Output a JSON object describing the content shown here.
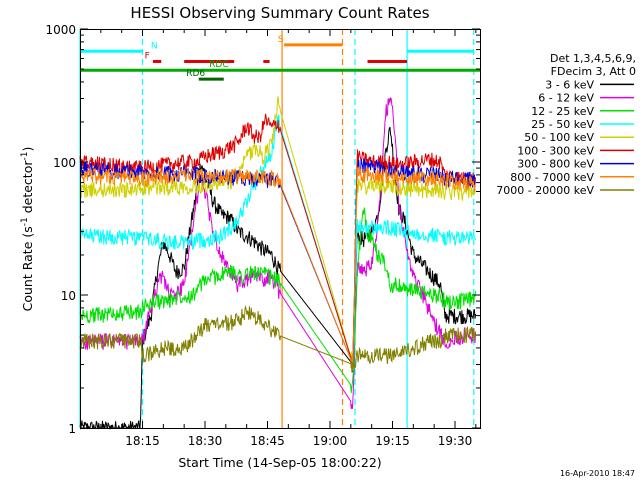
{
  "chart_data": {
    "type": "line",
    "title": "HESSI Observing Summary Count Rates",
    "xlabel": "Start Time (14-Sep-05 18:00:22)",
    "ylabel_prefix": "Count Rate (s",
    "ylabel_sup1": "-1",
    "ylabel_mid": " detector",
    "ylabel_sup2": "-1",
    "ylabel_suffix": ")",
    "yscale": "log",
    "ylim": [
      1,
      1000
    ],
    "xlim_minutes": [
      0,
      96
    ],
    "x_ticks": [
      {
        "minute": 15,
        "label": "18:15"
      },
      {
        "minute": 30,
        "label": "18:30"
      },
      {
        "minute": 45,
        "label": "18:45"
      },
      {
        "minute": 60,
        "label": "19:00"
      },
      {
        "minute": 75,
        "label": "19:15"
      },
      {
        "minute": 90,
        "label": "19:30"
      }
    ],
    "y_ticks": [
      {
        "value": 1,
        "label": "1"
      },
      {
        "value": 10,
        "label": "10"
      },
      {
        "value": 100,
        "label": "100"
      },
      {
        "value": 1000,
        "label": "1000"
      }
    ],
    "legend_title": [
      "Det 1,3,4,5,6,9,",
      "FDecim 3, Att 0"
    ],
    "legend_position": "right",
    "series": [
      {
        "name": "3 - 6 keV",
        "color": "#000000",
        "x": [
          0,
          14.5,
          15,
          17,
          18.5,
          20,
          21.5,
          23,
          25,
          26.5,
          28,
          29,
          30,
          32,
          34,
          36,
          38,
          40,
          42,
          44,
          46,
          47.5,
          65.5,
          66.5,
          68,
          70,
          71.5,
          72.5,
          73.5,
          74.5,
          75.5,
          76.5,
          78,
          80,
          86.5,
          87.5,
          92,
          95
        ],
        "y": [
          1,
          1,
          4.5,
          7,
          15,
          25,
          20,
          15,
          16,
          32,
          60,
          100,
          80,
          50,
          40,
          38,
          30,
          28,
          25,
          22,
          20,
          16,
          3,
          28,
          26,
          30,
          40,
          70,
          130,
          180,
          90,
          45,
          35,
          20,
          12,
          7,
          7,
          7
        ]
      },
      {
        "name": "6 - 12 keV",
        "color": "#e000e0",
        "x": [
          0,
          14.5,
          15,
          17,
          18.5,
          20,
          21.5,
          23,
          25,
          26.5,
          28,
          29,
          30,
          32,
          34,
          36,
          38,
          40,
          42,
          44,
          46,
          47.5,
          65.5,
          66.5,
          68,
          70,
          71.5,
          72.5,
          73.5,
          74.5,
          75.5,
          76.5,
          78,
          80,
          86.5,
          87.5,
          92,
          95
        ],
        "y": [
          4.5,
          4.5,
          4.5,
          8,
          12,
          14,
          10,
          10,
          12,
          25,
          50,
          80,
          60,
          30,
          20,
          14,
          12,
          13,
          14,
          13,
          14,
          11,
          1.5,
          16,
          15,
          18,
          35,
          90,
          240,
          300,
          180,
          50,
          25,
          14,
          5,
          4.5,
          5,
          5
        ]
      },
      {
        "name": "12 - 25 keV",
        "color": "#00e000",
        "x": [
          0,
          14.5,
          15,
          18,
          21,
          24,
          27,
          30,
          33,
          36,
          39,
          42,
          45,
          47.5,
          65.5,
          66.5,
          68,
          69,
          70,
          71.5,
          73,
          74.5,
          76,
          78,
          80,
          84,
          86.5,
          87.5,
          92,
          95
        ],
        "y": [
          7,
          7.5,
          8,
          9,
          9,
          10,
          10,
          13,
          14,
          15,
          14,
          15,
          14,
          13,
          2,
          15,
          45,
          30,
          25,
          20,
          18,
          12,
          12,
          11,
          11,
          10,
          10,
          9,
          9,
          9.5
        ]
      },
      {
        "name": "25 - 50 keV",
        "color": "#00ffff",
        "x": [
          0,
          14.5,
          15,
          18,
          22,
          26,
          28,
          30,
          34,
          36,
          38,
          40,
          42,
          44,
          46,
          47.5,
          65.5,
          66.5,
          68,
          70,
          74,
          78,
          82,
          86.5,
          87.5,
          92,
          95
        ],
        "y": [
          28,
          27,
          27,
          26,
          25,
          25,
          26,
          26,
          28,
          32,
          38,
          50,
          70,
          90,
          120,
          210,
          3,
          33,
          32,
          32,
          32,
          30,
          29,
          28,
          27,
          27,
          27
        ]
      },
      {
        "name": "50 - 100 keV",
        "color": "#d0d000",
        "x": [
          0,
          14.5,
          15,
          20,
          25,
          28,
          30,
          34,
          36,
          38,
          40,
          42,
          44,
          46,
          47.5,
          65.5,
          66.5,
          68,
          70,
          74,
          78,
          82,
          86.5,
          87.5,
          92,
          95
        ],
        "y": [
          62,
          62,
          64,
          65,
          66,
          66,
          68,
          70,
          72,
          80,
          110,
          130,
          110,
          140,
          280,
          3,
          68,
          66,
          66,
          68,
          64,
          62,
          62,
          60,
          60,
          60
        ]
      },
      {
        "name": "100 - 300 keV",
        "color": "#e00000",
        "x": [
          0,
          14.5,
          15,
          20,
          25,
          28,
          30,
          34,
          36,
          38,
          40,
          41.5,
          43,
          44.5,
          46,
          47.5,
          65.5,
          66.5,
          68,
          70,
          72,
          74,
          76,
          80,
          84,
          86.5,
          87.5,
          92,
          95
        ],
        "y": [
          100,
          90,
          90,
          95,
          100,
          100,
          110,
          120,
          130,
          140,
          190,
          160,
          150,
          210,
          180,
          200,
          3,
          110,
          105,
          100,
          100,
          100,
          95,
          100,
          105,
          100,
          80,
          75,
          75
        ]
      },
      {
        "name": "300 - 800 keV",
        "color": "#0000e0",
        "x": [
          0,
          14.5,
          15,
          20,
          25,
          30,
          35,
          40,
          45,
          47.5,
          65.5,
          66.5,
          70,
          75,
          80,
          86.5,
          87.5,
          92,
          95
        ],
        "y": [
          88,
          85,
          83,
          82,
          82,
          80,
          78,
          76,
          74,
          74,
          3,
          95,
          92,
          88,
          82,
          80,
          75,
          74,
          74
        ]
      },
      {
        "name": "800 - 7000 keV",
        "color": "#ff8000",
        "x": [
          0,
          14.5,
          15,
          20,
          25,
          30,
          35,
          40,
          45,
          47.5,
          65.5,
          66.5,
          70,
          75,
          80,
          86.5,
          87.5,
          92,
          95
        ],
        "y": [
          80,
          76,
          76,
          78,
          78,
          78,
          78,
          78,
          76,
          76,
          3,
          82,
          80,
          78,
          76,
          75,
          72,
          70,
          68
        ]
      },
      {
        "name": "7000 - 20000 keV",
        "color": "#808000",
        "x": [
          0,
          14.5,
          15,
          20,
          25,
          28,
          30,
          34,
          38,
          40,
          42,
          46,
          47.5,
          65.5,
          66.5,
          70,
          75,
          80,
          84,
          86.5,
          87.5,
          92,
          95
        ],
        "y": [
          4.5,
          4.5,
          3.5,
          4,
          4,
          5,
          6,
          6,
          6.5,
          7.5,
          7,
          5.5,
          5,
          3,
          3.5,
          3.5,
          3.5,
          4,
          4.5,
          4.5,
          5,
          5,
          5
        ]
      }
    ],
    "vertical_lines": [
      {
        "minute": 0,
        "color": "#00ffff",
        "style": "solid"
      },
      {
        "minute": 15,
        "color": "#00ffff",
        "style": "dashed"
      },
      {
        "minute": 48.5,
        "color": "#ff8000",
        "style": "solid"
      },
      {
        "minute": 63,
        "color": "#ff8000",
        "style": "dashed"
      },
      {
        "minute": 66,
        "color": "#00ffff",
        "style": "dashed"
      },
      {
        "minute": 78.5,
        "color": "#00ffff",
        "style": "solid"
      },
      {
        "minute": 94.5,
        "color": "#00ffff",
        "style": "dashed"
      }
    ],
    "flag_bars": [
      {
        "label": "N",
        "color": "#00ffff",
        "level": 680,
        "segments": [
          [
            0,
            15
          ],
          [
            78.5,
            94.5
          ]
        ],
        "label_minute": 17
      },
      {
        "label": "S",
        "color": "#ff8000",
        "level": 760,
        "segments": [
          [
            49,
            63
          ]
        ],
        "label_minute": 47.5
      },
      {
        "label": "F",
        "color": "#e00000",
        "level": 570,
        "segments": [
          [
            17.5,
            19.5
          ],
          [
            25,
            37
          ],
          [
            44,
            45.5
          ],
          [
            69,
            78.5
          ]
        ],
        "label_minute": 15.5
      },
      {
        "label": "RDC",
        "color": "#00aa00",
        "level": 490,
        "segments": [
          [
            0,
            96
          ]
        ],
        "label_minute": 31
      },
      {
        "label": "RD6",
        "color": "#006600",
        "level": 420,
        "segments": [
          [
            28.5,
            34.5
          ]
        ],
        "label_minute": 25.5
      }
    ],
    "grid": false
  },
  "footer": {
    "timestamp": "16-Apr-2010 18:47"
  }
}
